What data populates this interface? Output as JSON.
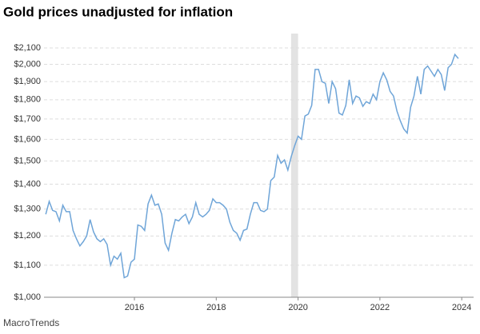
{
  "chart_data": {
    "type": "line",
    "title": "Gold prices unadjusted for inflation",
    "source": "MacroTrends",
    "log_scale": true,
    "grid": true,
    "xlim": [
      2013.79,
      2024.29
    ],
    "xticks": [
      2016,
      2018,
      2020,
      2022,
      2024
    ],
    "ylim": [
      1000,
      2100
    ],
    "yticks": [
      {
        "value": 1000,
        "label": "$1,000"
      },
      {
        "value": 1100,
        "label": "$1,100"
      },
      {
        "value": 1200,
        "label": "$1,200"
      },
      {
        "value": 1300,
        "label": "$1,300"
      },
      {
        "value": 1400,
        "label": "$1,400"
      },
      {
        "value": 1500,
        "label": "$1,500"
      },
      {
        "value": 1600,
        "label": "$1,600"
      },
      {
        "value": 1700,
        "label": "$1,700"
      },
      {
        "value": 1800,
        "label": "$1,800"
      },
      {
        "value": 1900,
        "label": "$1,900"
      },
      {
        "value": 2000,
        "label": "$2,000"
      },
      {
        "value": 2100,
        "label": "$2,100"
      }
    ],
    "shaded_range": [
      2019.83,
      2020.0
    ],
    "shade_color": "#e3e3e3",
    "x": [
      2013.833,
      2013.917,
      2014.0,
      2014.083,
      2014.167,
      2014.25,
      2014.333,
      2014.417,
      2014.5,
      2014.583,
      2014.667,
      2014.75,
      2014.833,
      2014.917,
      2015.0,
      2015.083,
      2015.167,
      2015.25,
      2015.333,
      2015.417,
      2015.5,
      2015.583,
      2015.667,
      2015.75,
      2015.833,
      2015.917,
      2016.0,
      2016.083,
      2016.167,
      2016.25,
      2016.333,
      2016.417,
      2016.5,
      2016.583,
      2016.667,
      2016.75,
      2016.833,
      2016.917,
      2017.0,
      2017.083,
      2017.167,
      2017.25,
      2017.333,
      2017.417,
      2017.5,
      2017.583,
      2017.667,
      2017.75,
      2017.833,
      2017.917,
      2018.0,
      2018.083,
      2018.167,
      2018.25,
      2018.333,
      2018.417,
      2018.5,
      2018.583,
      2018.667,
      2018.75,
      2018.833,
      2018.917,
      2019.0,
      2019.083,
      2019.167,
      2019.25,
      2019.333,
      2019.417,
      2019.5,
      2019.583,
      2019.667,
      2019.75,
      2019.833,
      2019.917,
      2020.0,
      2020.083,
      2020.167,
      2020.25,
      2020.333,
      2020.417,
      2020.5,
      2020.583,
      2020.667,
      2020.75,
      2020.833,
      2020.917,
      2021.0,
      2021.083,
      2021.167,
      2021.25,
      2021.333,
      2021.417,
      2021.5,
      2021.583,
      2021.667,
      2021.75,
      2021.833,
      2021.917,
      2022.0,
      2022.083,
      2022.167,
      2022.25,
      2022.333,
      2022.417,
      2022.5,
      2022.583,
      2022.667,
      2022.75,
      2022.833,
      2022.917,
      2023.0,
      2023.083,
      2023.167,
      2023.25,
      2023.333,
      2023.417,
      2023.5,
      2023.583,
      2023.667,
      2023.75,
      2023.833,
      2023.917
    ],
    "series": [
      {
        "name": "Gold price",
        "color": "#6fa5d8",
        "values": [
          1280,
          1330,
          1295,
          1290,
          1255,
          1315,
          1290,
          1290,
          1220,
          1190,
          1165,
          1180,
          1200,
          1260,
          1215,
          1190,
          1180,
          1190,
          1170,
          1100,
          1130,
          1120,
          1140,
          1060,
          1065,
          1110,
          1120,
          1240,
          1235,
          1220,
          1320,
          1355,
          1315,
          1320,
          1280,
          1175,
          1150,
          1210,
          1260,
          1255,
          1270,
          1280,
          1245,
          1270,
          1325,
          1280,
          1270,
          1280,
          1295,
          1340,
          1325,
          1325,
          1315,
          1300,
          1250,
          1220,
          1210,
          1185,
          1220,
          1225,
          1280,
          1325,
          1325,
          1295,
          1290,
          1300,
          1415,
          1430,
          1525,
          1490,
          1505,
          1460,
          1520,
          1570,
          1615,
          1600,
          1715,
          1725,
          1770,
          1970,
          1970,
          1900,
          1890,
          1780,
          1900,
          1860,
          1730,
          1720,
          1770,
          1910,
          1780,
          1820,
          1810,
          1765,
          1790,
          1780,
          1830,
          1800,
          1900,
          1950,
          1910,
          1845,
          1820,
          1740,
          1690,
          1650,
          1630,
          1760,
          1820,
          1930,
          1830,
          1970,
          1990,
          1960,
          1930,
          1970,
          1940,
          1850,
          1980,
          2000,
          2060,
          2035
        ]
      }
    ]
  }
}
